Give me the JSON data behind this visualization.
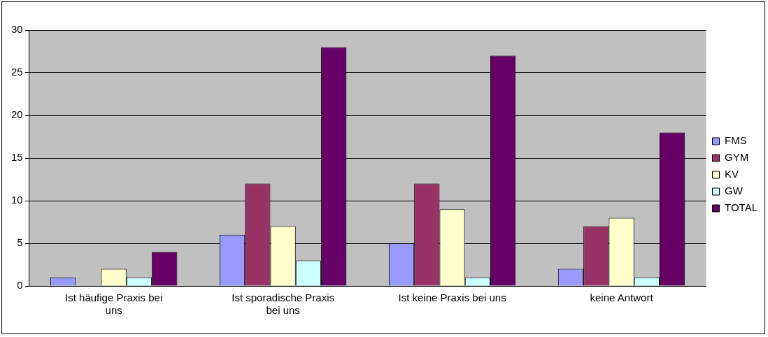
{
  "chart_data": {
    "type": "bar",
    "categories": [
      "Ist häufige Praxis bei uns",
      "Ist sporadische Praxis bei uns",
      "Ist keine Praxis bei uns",
      "keine Antwort"
    ],
    "series": [
      {
        "name": "FMS",
        "color": "#9999ff",
        "values": [
          1,
          6,
          5,
          2
        ]
      },
      {
        "name": "GYM",
        "color": "#993366",
        "values": [
          0,
          12,
          12,
          7
        ]
      },
      {
        "name": "KV",
        "color": "#ffffcc",
        "values": [
          2,
          7,
          9,
          8
        ]
      },
      {
        "name": "GW",
        "color": "#ccffff",
        "values": [
          1,
          3,
          1,
          1
        ]
      },
      {
        "name": "TOTAL",
        "color": "#660066",
        "values": [
          4,
          28,
          27,
          18
        ]
      }
    ],
    "ylim": [
      0,
      30
    ],
    "yticks": [
      0,
      5,
      10,
      15,
      20,
      25,
      30
    ],
    "grid": "y",
    "legend": "right"
  }
}
